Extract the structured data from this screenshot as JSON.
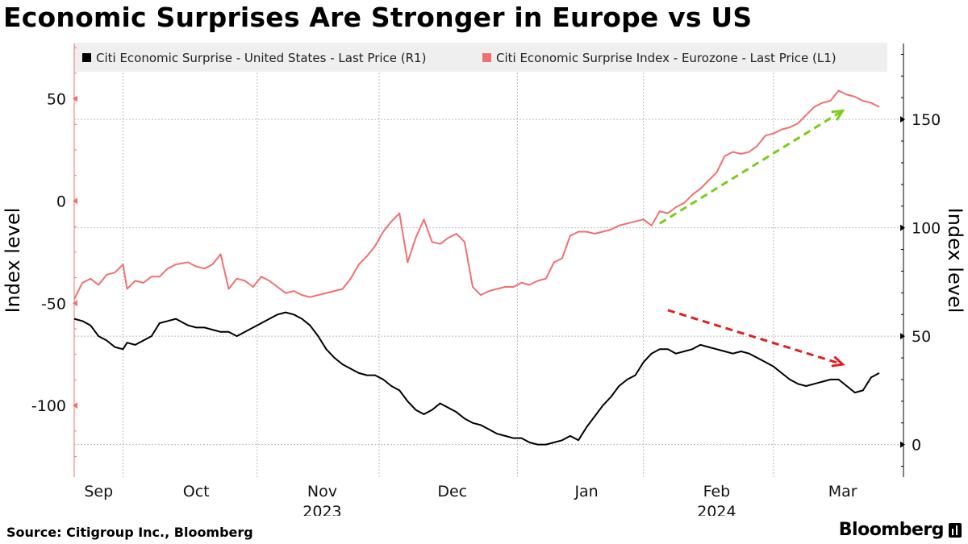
{
  "header": {
    "title": "Economic Surprises Are Stronger in Europe vs US"
  },
  "footer": {
    "source": "Source: Citigroup Inc., Bloomberg",
    "brand": "Bloomberg"
  },
  "colors": {
    "us": "#000000",
    "eurozone": "#f07070",
    "green_arrow": "#7ccc1a",
    "red_arrow": "#e02020",
    "grid": "#bbbbbb",
    "legend_bg": "#efefef"
  },
  "chart_data": {
    "type": "line",
    "x_unit": "day index starting 2023-08-31",
    "left_axis": {
      "label": "Index level",
      "ylim": [
        -135,
        77
      ],
      "ticks": [
        50,
        0,
        -50,
        -100
      ],
      "tick_labels": [
        "50",
        "0",
        "-50",
        "-100"
      ],
      "axis_color": "#f07070"
    },
    "right_axis": {
      "label": "Index level",
      "ylim": [
        -15,
        185
      ],
      "ticks": [
        150,
        100,
        50,
        0
      ],
      "tick_labels": [
        "150",
        "100",
        "50",
        "0"
      ]
    },
    "x_axis": {
      "xlim": [
        0,
        198
      ],
      "month_ticks": [
        {
          "label": "Sep",
          "x": 6
        },
        {
          "label": "Oct",
          "x": 30
        },
        {
          "label": "Nov",
          "x": 61
        },
        {
          "label": "Dec",
          "x": 93
        },
        {
          "label": "Jan",
          "x": 126
        },
        {
          "label": "Feb",
          "x": 158
        },
        {
          "label": "Mar",
          "x": 189
        }
      ],
      "year_labels": [
        {
          "label": "2023",
          "x": 61
        },
        {
          "label": "2024",
          "x": 158
        }
      ],
      "month_boundaries": [
        12,
        45,
        75,
        109,
        140,
        172
      ]
    },
    "legend": [
      {
        "name": "Citi Economic Surprise - United States - Last Price (R1)",
        "color": "#000000"
      },
      {
        "name": "Citi Economic Surprise Index - Eurozone - Last Price (L1)",
        "color": "#f07070"
      }
    ],
    "series": [
      {
        "name": "Citi Economic Surprise Index - Eurozone - Last Price (L1)",
        "axis": "left",
        "color": "#f07070",
        "x": [
          0,
          2,
          4,
          6,
          8,
          10,
          12,
          13,
          15,
          17,
          19,
          21,
          23,
          25,
          28,
          30,
          32,
          34,
          36,
          38,
          40,
          42,
          44,
          46,
          48,
          50,
          52,
          54,
          56,
          58,
          60,
          62,
          64,
          66,
          68,
          70,
          72,
          74,
          76,
          78,
          80,
          82,
          84,
          86,
          88,
          90,
          92,
          94,
          96,
          98,
          100,
          102,
          104,
          106,
          108,
          110,
          112,
          114,
          116,
          118,
          120,
          122,
          124,
          126,
          128,
          130,
          132,
          134,
          136,
          138,
          140,
          142,
          144,
          146,
          148,
          150,
          152,
          154,
          156,
          158,
          160,
          162,
          164,
          166,
          168,
          170,
          172,
          174,
          176,
          178,
          180,
          182,
          184,
          186,
          188,
          190,
          192,
          194,
          196,
          198
        ],
        "values": [
          -48,
          -40,
          -38,
          -41,
          -36,
          -35,
          -31,
          -43,
          -39,
          -40,
          -37,
          -37,
          -33,
          -31,
          -30,
          -32,
          -33,
          -31,
          -26,
          -43,
          -38,
          -39,
          -42,
          -37,
          -39,
          -42,
          -45,
          -44,
          -46,
          -47,
          -46,
          -45,
          -44,
          -43,
          -38,
          -31,
          -27,
          -22,
          -15,
          -10,
          -6,
          -30,
          -18,
          -9,
          -20,
          -21,
          -18,
          -16,
          -20,
          -42,
          -46,
          -44,
          -43,
          -42,
          -42,
          -40,
          -41,
          -39,
          -38,
          -30,
          -28,
          -17,
          -15,
          -15,
          -16,
          -15,
          -14,
          -12,
          -11,
          -10,
          -9,
          -12,
          -5,
          -6,
          -3,
          -1,
          3,
          6,
          10,
          14,
          22,
          24,
          23,
          24,
          27,
          32,
          33,
          35,
          36,
          38,
          42,
          46,
          48,
          49,
          54,
          52,
          51,
          49,
          48,
          46
        ]
      },
      {
        "name": "Citi Economic Surprise - United States - Last Price (R1)",
        "axis": "right",
        "color": "#000000",
        "x": [
          0,
          2,
          4,
          6,
          8,
          10,
          12,
          13,
          15,
          17,
          19,
          21,
          23,
          25,
          28,
          30,
          32,
          34,
          36,
          38,
          40,
          42,
          44,
          46,
          48,
          50,
          52,
          54,
          56,
          58,
          60,
          62,
          64,
          66,
          68,
          70,
          72,
          74,
          76,
          78,
          80,
          82,
          84,
          86,
          88,
          90,
          92,
          94,
          96,
          98,
          100,
          102,
          104,
          106,
          108,
          110,
          112,
          114,
          116,
          118,
          120,
          122,
          124,
          126,
          128,
          130,
          132,
          134,
          136,
          138,
          140,
          142,
          144,
          146,
          148,
          150,
          152,
          154,
          156,
          158,
          160,
          162,
          164,
          166,
          168,
          170,
          172,
          174,
          176,
          178,
          180,
          182,
          184,
          186,
          188,
          190,
          192,
          194,
          196,
          198
        ],
        "values": [
          58,
          57,
          55,
          50,
          48,
          45,
          44,
          47,
          46,
          48,
          50,
          56,
          57,
          58,
          55,
          54,
          54,
          53,
          52,
          52,
          50,
          52,
          54,
          56,
          58,
          60,
          61,
          60,
          58,
          55,
          50,
          44,
          40,
          37,
          35,
          33,
          32,
          32,
          30,
          27,
          25,
          20,
          16,
          14,
          16,
          19,
          17,
          15,
          12,
          10,
          9,
          7,
          5,
          4,
          3,
          3,
          1,
          0,
          0,
          1,
          2,
          4,
          2,
          8,
          13,
          18,
          22,
          27,
          30,
          32,
          38,
          42,
          44,
          44,
          42,
          43,
          44,
          46,
          45,
          44,
          43,
          42,
          43,
          42,
          40,
          38,
          36,
          33,
          30,
          28,
          27,
          28,
          29,
          30,
          30,
          27,
          24,
          25,
          31,
          33
        ]
      }
    ],
    "annotations": [
      {
        "type": "dashed-arrow",
        "color": "#7ccc1a",
        "from": {
          "x": 144,
          "y_right": 102
        },
        "to": {
          "x": 189,
          "y_right": 154
        }
      },
      {
        "type": "dashed-arrow",
        "color": "#e02020",
        "from": {
          "x": 146,
          "y_right": 62
        },
        "to": {
          "x": 189,
          "y_right": 37
        }
      }
    ]
  }
}
